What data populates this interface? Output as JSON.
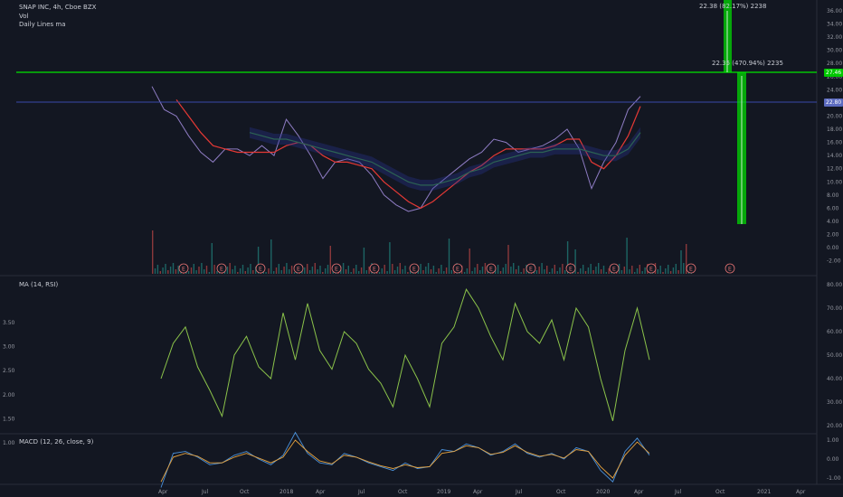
{
  "header": {
    "symbol": "SNAP INC, 4h, Cboe BZX",
    "volume_label": "Vol",
    "indicator_label": "Daily Lines ma"
  },
  "panes": {
    "ma_rsi_label": "MA (14, RSI)",
    "macd_label": "MACD (12, 26, close, 9)"
  },
  "annotations": {
    "top_measure": "22.38 (82.17%) 2238",
    "second_measure": "22.35 (470.94%) 2235",
    "price_tag_green": "27.46",
    "price_tag_blue": "22.80",
    "earnings_marker": "E"
  },
  "colors": {
    "background": "#131722",
    "price": "#8e7cc3",
    "ma_red": "#e53935",
    "ma_green": "#2e7d32",
    "ma_blue": "#283593",
    "rsi": "#8bc34a",
    "macd": "#4a90d9",
    "signal": "#e8a33d",
    "horizontal_green": "#00e600",
    "horizontal_blue": "#3949ab"
  },
  "chart_data": [
    {
      "type": "line",
      "title": "SNAP INC, 4h, Cboe BZX",
      "x_tick_labels": [
        "Apr",
        "Jul",
        "Oct",
        "2018",
        "Apr",
        "Jul",
        "Oct",
        "2019",
        "Apr",
        "Jul",
        "Oct",
        "2020",
        "Apr",
        "Jul",
        "Oct",
        "2021",
        "Apr"
      ],
      "y_tick_labels": [
        "36.00",
        "34.00",
        "32.00",
        "30.00",
        "28.00",
        "26.00",
        "24.00",
        "22.00",
        "20.00",
        "18.00",
        "16.00",
        "14.00",
        "12.00",
        "10.00",
        "8.00",
        "6.00",
        "4.00",
        "2.00",
        "0.00",
        "-2.00"
      ],
      "ylim": [
        -2,
        37
      ],
      "x": [
        "2017-03",
        "2017-04",
        "2017-05",
        "2017-06",
        "2017-07",
        "2017-08",
        "2017-09",
        "2017-10",
        "2017-11",
        "2017-12",
        "2018-01",
        "2018-02",
        "2018-03",
        "2018-04",
        "2018-05",
        "2018-06",
        "2018-07",
        "2018-08",
        "2018-09",
        "2018-10",
        "2018-11",
        "2018-12",
        "2019-01",
        "2019-02",
        "2019-03",
        "2019-04",
        "2019-05",
        "2019-06",
        "2019-07",
        "2019-08",
        "2019-09",
        "2019-10",
        "2019-11",
        "2019-12",
        "2020-01",
        "2020-02",
        "2020-03",
        "2020-04",
        "2020-05",
        "2020-06",
        "2020-07"
      ],
      "series": [
        {
          "values": [
            24.5,
            21,
            20,
            17,
            14.5,
            13,
            15,
            15,
            14,
            15.5,
            14,
            19.5,
            17,
            14,
            10.5,
            13,
            13.5,
            13,
            11,
            8,
            6.5,
            5.5,
            6,
            9,
            10.5,
            12,
            13.5,
            14.5,
            16.5,
            16,
            14.5,
            15,
            15.5,
            16.5,
            18,
            15,
            9,
            13,
            16,
            21,
            23
          ]
        },
        {
          "values": [
            null,
            null,
            22.5,
            20,
            17.5,
            15.5,
            15,
            14.5,
            14.5,
            14.5,
            14.5,
            15.5,
            16,
            15.5,
            14,
            13,
            13,
            12.5,
            12,
            10,
            8.5,
            7,
            6,
            7,
            8.5,
            10,
            11.5,
            12.5,
            14,
            15,
            15,
            15,
            15,
            15.5,
            16.5,
            16.5,
            13,
            12,
            14,
            17,
            21.5
          ]
        },
        {
          "values": [
            null,
            null,
            null,
            null,
            null,
            null,
            null,
            null,
            17.5,
            17,
            16.5,
            16.5,
            16,
            15.5,
            15,
            14.5,
            14,
            13.5,
            13,
            12,
            11,
            10,
            9.5,
            9.5,
            10,
            10.5,
            11.5,
            12,
            13,
            13.5,
            14,
            14.5,
            14.5,
            15,
            15,
            15,
            14.5,
            14,
            14,
            15,
            17.5
          ]
        }
      ]
    },
    {
      "type": "line",
      "title": "MA (14, RSI)",
      "y_tick_labels": [
        "3.50",
        "3.00",
        "2.50",
        "2.00",
        "1.50",
        "1.00"
      ],
      "y2_tick_labels": [
        "80.00",
        "70.00",
        "60.00",
        "50.00",
        "40.00",
        "30.00",
        "20.00"
      ],
      "ylim": [
        20,
        80
      ],
      "x": [
        "2017-03",
        "2017-04",
        "2017-05",
        "2017-06",
        "2017-07",
        "2017-08",
        "2017-09",
        "2017-10",
        "2017-11",
        "2017-12",
        "2018-01",
        "2018-02",
        "2018-03",
        "2018-04",
        "2018-05",
        "2018-06",
        "2018-07",
        "2018-08",
        "2018-09",
        "2018-10",
        "2018-11",
        "2018-12",
        "2019-01",
        "2019-02",
        "2019-03",
        "2019-04",
        "2019-05",
        "2019-06",
        "2019-07",
        "2019-08",
        "2019-09",
        "2019-10",
        "2019-11",
        "2019-12",
        "2020-01",
        "2020-02",
        "2020-03",
        "2020-04",
        "2020-05",
        "2020-06",
        "2020-07"
      ],
      "series": [
        {
          "values": [
            40,
            55,
            62,
            45,
            35,
            24,
            50,
            58,
            45,
            40,
            68,
            48,
            72,
            52,
            44,
            60,
            55,
            44,
            38,
            28,
            50,
            40,
            28,
            55,
            62,
            78,
            70,
            58,
            48,
            72,
            60,
            55,
            65,
            48,
            70,
            62,
            40,
            22,
            52,
            70,
            48
          ]
        }
      ]
    },
    {
      "type": "line",
      "title": "MACD (12, 26, close, 9)",
      "y_tick_labels": [
        "1.00",
        "0.00",
        "-1.00"
      ],
      "ylim": [
        -1.6,
        1.6
      ],
      "x": [
        "2017-03",
        "2017-04",
        "2017-05",
        "2017-06",
        "2017-07",
        "2017-08",
        "2017-09",
        "2017-10",
        "2017-11",
        "2017-12",
        "2018-01",
        "2018-02",
        "2018-03",
        "2018-04",
        "2018-05",
        "2018-06",
        "2018-07",
        "2018-08",
        "2018-09",
        "2018-10",
        "2018-11",
        "2018-12",
        "2019-01",
        "2019-02",
        "2019-03",
        "2019-04",
        "2019-05",
        "2019-06",
        "2019-07",
        "2019-08",
        "2019-09",
        "2019-10",
        "2019-11",
        "2019-12",
        "2020-01",
        "2020-02",
        "2020-03",
        "2020-04",
        "2020-05",
        "2020-06",
        "2020-07"
      ],
      "series": [
        {
          "values": [
            -1.5,
            0.3,
            0.4,
            0.1,
            -0.3,
            -0.2,
            0.2,
            0.4,
            0,
            -0.3,
            0.2,
            1.4,
            0.3,
            -0.2,
            -0.3,
            0.3,
            0.1,
            -0.2,
            -0.4,
            -0.6,
            -0.2,
            -0.5,
            -0.4,
            0.5,
            0.4,
            0.8,
            0.6,
            0.2,
            0.4,
            0.8,
            0.3,
            0.1,
            0.3,
            0,
            0.6,
            0.4,
            -0.6,
            -1.2,
            0.4,
            1.1,
            0.2
          ]
        },
        {
          "values": [
            -1.2,
            0.1,
            0.3,
            0.15,
            -0.2,
            -0.2,
            0.1,
            0.3,
            0.05,
            -0.2,
            0.1,
            1,
            0.4,
            -0.1,
            -0.25,
            0.2,
            0.1,
            -0.15,
            -0.35,
            -0.5,
            -0.3,
            -0.45,
            -0.4,
            0.3,
            0.4,
            0.7,
            0.6,
            0.25,
            0.35,
            0.7,
            0.35,
            0.15,
            0.25,
            0.05,
            0.5,
            0.4,
            -0.4,
            -1,
            0.2,
            0.9,
            0.3
          ]
        }
      ]
    }
  ]
}
